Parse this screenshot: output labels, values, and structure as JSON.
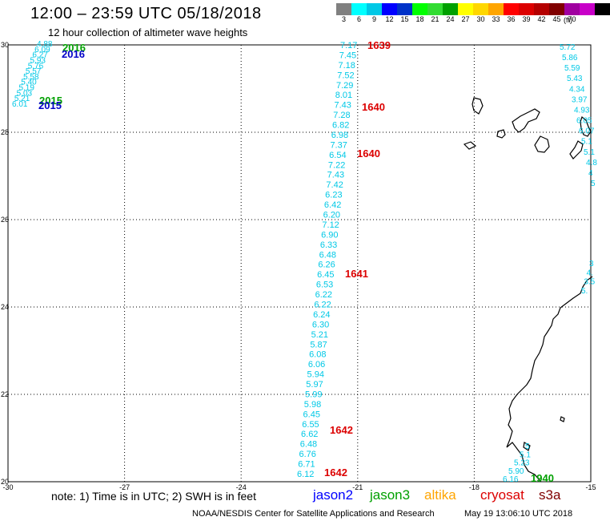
{
  "header": {
    "title": "12:00 – 23:59 UTC 05/18/2018",
    "subtitle": "12 hour collection of altimeter wave heights"
  },
  "legend": {
    "colors": [
      "#808080",
      "#00ffff",
      "#00c8e6",
      "#0000ff",
      "#0032c8",
      "#00ff00",
      "#32dc32",
      "#00a000",
      "#ffff00",
      "#ffd700",
      "#ffa500",
      "#ff0000",
      "#dc0000",
      "#b40000",
      "#800000",
      "#a000a0",
      "#c800c8",
      "#000000"
    ],
    "labels": [
      "3",
      "6",
      "9",
      "12",
      "15",
      "18",
      "21",
      "24",
      "27",
      "30",
      "33",
      "36",
      "39",
      "42",
      "45",
      "70"
    ],
    "unit": "(ft)"
  },
  "axes": {
    "lon_labels": [
      "-30",
      "-27",
      "-24",
      "-21",
      "-18",
      "-15"
    ],
    "lat_labels": [
      "30",
      "28",
      "26",
      "24",
      "22",
      "20"
    ],
    "lon_range": [
      -30,
      -15
    ],
    "lat_range": [
      20,
      30
    ]
  },
  "track_main": {
    "color": "#00c8e6",
    "values": [
      "7.17",
      "7.45",
      "7.18",
      "7.52",
      "7.29",
      "8.01",
      "7.43",
      "7.28",
      "6.82",
      "6.98",
      "7.37",
      "6.54",
      "7.22",
      "7.43",
      "7.42",
      "6.23",
      "6.42",
      "6.20",
      "7.12",
      "6.90",
      "6.33",
      "6.48",
      "6.26",
      "6.45",
      "6.53",
      "6.22",
      "6.22",
      "6.24",
      "6.30",
      "5.21",
      "5.87",
      "6.08",
      "6.06",
      "5.94",
      "5.97",
      "5.99",
      "5.98",
      "6.45",
      "6.55",
      "6.62",
      "6.48",
      "6.76",
      "6.71",
      "6.12"
    ]
  },
  "track_east": {
    "color": "#00c8e6",
    "values": [
      "5.72",
      "5.86",
      "5.59",
      "5.43",
      "4.34",
      "3.97",
      "4.93",
      "6.05",
      "6.07",
      "5.1",
      "5.1",
      "4.8",
      "4",
      "5"
    ]
  },
  "track_east_mid": {
    "values": [
      "3",
      "4.",
      "3.5",
      "5."
    ]
  },
  "track_se": {
    "values": [
      "5",
      "5.1",
      "5.23",
      "5.90",
      "6.16"
    ]
  },
  "track_nw": {
    "values": [
      "4.88",
      "6.09",
      "6.27",
      "5.93",
      "5.76",
      "5.57",
      "5.58",
      "5.40",
      "5.19",
      "5.03",
      "5.21",
      "6.01"
    ]
  },
  "time_labels": [
    {
      "text": "1639",
      "color": "#dc0000"
    },
    {
      "text": "1640",
      "color": "#dc0000"
    },
    {
      "text": "1640",
      "color": "#dc0000"
    },
    {
      "text": "1641",
      "color": "#dc0000"
    },
    {
      "text": "1642",
      "color": "#dc0000"
    },
    {
      "text": "1642",
      "color": "#dc0000"
    },
    {
      "text": "2016",
      "color": "#00a000"
    },
    {
      "text": "2016",
      "color": "#0000c8"
    },
    {
      "text": "2015",
      "color": "#00a000"
    },
    {
      "text": "2015",
      "color": "#0000c8"
    },
    {
      "text": "1940",
      "color": "#00a000"
    }
  ],
  "footer": {
    "note": "note: 1) Time is in UTC; 2) SWH is in feet",
    "satellites": [
      {
        "name": "jason2",
        "color": "#0000ff"
      },
      {
        "name": "jason3",
        "color": "#00a000"
      },
      {
        "name": "altika",
        "color": "#ffa500"
      },
      {
        "name": "cryosat",
        "color": "#dc0000"
      },
      {
        "name": "s3a",
        "color": "#800000"
      }
    ],
    "credit": "NOAA/NESDIS Center for Satellite Applications and Research",
    "timestamp": "May 19 13:06:10 UTC 2018"
  }
}
